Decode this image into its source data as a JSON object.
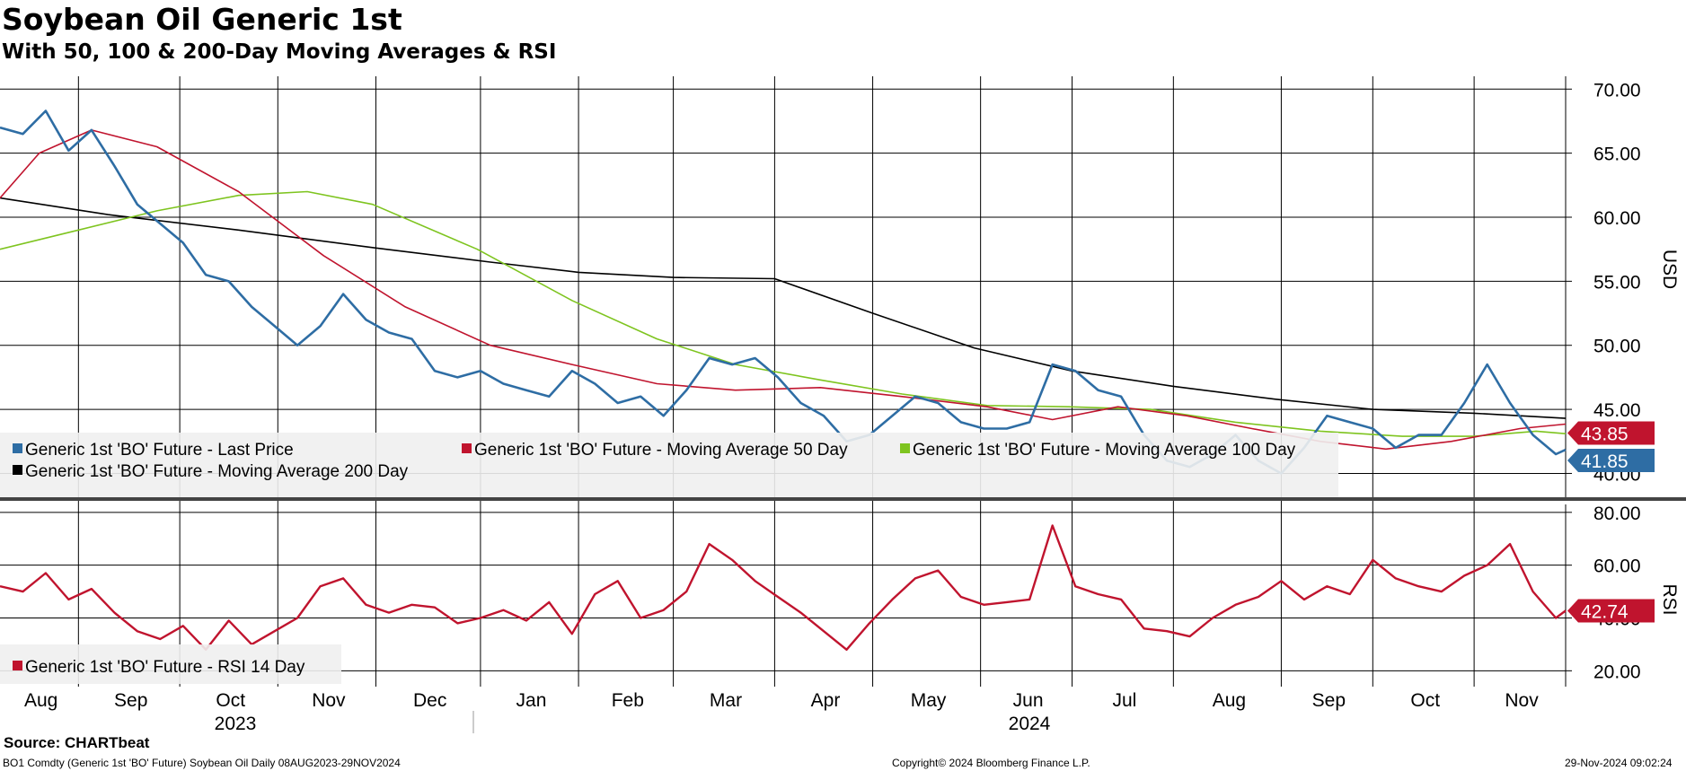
{
  "header": {
    "title": "Soybean Oil Generic 1st",
    "subtitle": "With 50, 100 & 200-Day Moving Averages & RSI"
  },
  "footer": {
    "source": "Source: CHARTbeat",
    "security": "BO1 Comdty (Generic 1st 'BO' Future) Soybean Oil  Daily 08AUG2023-29NOV2024",
    "copyright": "Copyright© 2024 Bloomberg Finance L.P.",
    "timestamp": "29-Nov-2024 09:02:24"
  },
  "colors": {
    "last_price": "#2e6da4",
    "ma50": "#c0142e",
    "ma100": "#7ec41f",
    "ma200": "#000000",
    "rsi": "#c0142e",
    "legend_bg": "#efefef",
    "grid": "#000000"
  },
  "chart_data": [
    {
      "type": "line",
      "panel": "price",
      "ylabel": "USD",
      "ylim": [
        38,
        71
      ],
      "yticks": [
        "70.00",
        "65.00",
        "60.00",
        "55.00",
        "50.00",
        "45.00",
        "40.00"
      ],
      "ytick_values": [
        70,
        65,
        60,
        55,
        50,
        45,
        40
      ],
      "x_months": [
        "Aug",
        "Sep",
        "Oct",
        "Nov",
        "Dec",
        "Jan",
        "Feb",
        "Mar",
        "Apr",
        "May",
        "Jun",
        "Jul",
        "Aug",
        "Sep",
        "Oct",
        "Nov"
      ],
      "x_years": [
        "2023",
        "2024"
      ],
      "x_range": [
        "2023-08-08",
        "2024-11-29"
      ],
      "last_value_tags": [
        {
          "label": "43.85",
          "series": "ma50",
          "value": 43.85
        },
        {
          "label": "41.85",
          "series": "last_price",
          "value": 41.85
        }
      ],
      "legend": [
        "Generic 1st 'BO' Future - Last Price",
        "Generic 1st 'BO' Future - Moving Average 50 Day",
        "Generic 1st 'BO' Future - Moving Average 100 Day",
        "Generic 1st 'BO' Future - Moving Average 200 Day"
      ],
      "series": [
        {
          "name": "Generic 1st 'BO' Future - Last Price",
          "key": "last_price",
          "x": [
            "2023-08-08",
            "2023-08-15",
            "2023-08-22",
            "2023-08-29",
            "2023-09-05",
            "2023-09-12",
            "2023-09-19",
            "2023-09-26",
            "2023-10-03",
            "2023-10-10",
            "2023-10-17",
            "2023-10-24",
            "2023-10-31",
            "2023-11-07",
            "2023-11-14",
            "2023-11-21",
            "2023-11-28",
            "2023-12-05",
            "2023-12-12",
            "2023-12-19",
            "2023-12-26",
            "2024-01-02",
            "2024-01-09",
            "2024-01-16",
            "2024-01-23",
            "2024-01-30",
            "2024-02-06",
            "2024-02-13",
            "2024-02-20",
            "2024-02-27",
            "2024-03-05",
            "2024-03-12",
            "2024-03-19",
            "2024-03-26",
            "2024-04-02",
            "2024-04-09",
            "2024-04-16",
            "2024-04-23",
            "2024-04-30",
            "2024-05-07",
            "2024-05-14",
            "2024-05-21",
            "2024-05-28",
            "2024-06-04",
            "2024-06-11",
            "2024-06-18",
            "2024-06-25",
            "2024-07-02",
            "2024-07-09",
            "2024-07-16",
            "2024-07-23",
            "2024-07-30",
            "2024-08-06",
            "2024-08-13",
            "2024-08-20",
            "2024-08-27",
            "2024-09-03",
            "2024-09-10",
            "2024-09-17",
            "2024-09-24",
            "2024-10-01",
            "2024-10-08",
            "2024-10-15",
            "2024-10-22",
            "2024-10-29",
            "2024-11-05",
            "2024-11-12",
            "2024-11-19",
            "2024-11-26",
            "2024-11-29"
          ],
          "values": [
            67.0,
            66.5,
            68.3,
            65.2,
            66.8,
            64.0,
            61.0,
            59.5,
            58.0,
            55.5,
            55.0,
            53.0,
            51.5,
            50.0,
            51.5,
            54.0,
            52.0,
            51.0,
            50.5,
            48.0,
            47.5,
            48.0,
            47.0,
            46.5,
            46.0,
            48.0,
            47.0,
            45.5,
            46.0,
            44.5,
            46.5,
            49.0,
            48.5,
            49.0,
            47.5,
            45.5,
            44.5,
            42.5,
            43.0,
            44.5,
            46.0,
            45.5,
            44.0,
            43.5,
            43.5,
            44.0,
            48.5,
            48.0,
            46.5,
            46.0,
            43.0,
            41.0,
            40.5,
            41.5,
            43.0,
            41.0,
            40.0,
            42.0,
            44.5,
            44.0,
            43.5,
            42.0,
            43.0,
            43.0,
            45.5,
            48.5,
            45.5,
            43.0,
            41.5,
            41.85
          ]
        },
        {
          "name": "Generic 1st 'BO' Future - Moving Average 50 Day",
          "key": "ma50",
          "x": [
            "2023-08-08",
            "2023-08-20",
            "2023-09-05",
            "2023-09-25",
            "2023-10-20",
            "2023-11-15",
            "2023-12-10",
            "2024-01-05",
            "2024-01-30",
            "2024-02-25",
            "2024-03-20",
            "2024-04-15",
            "2024-05-10",
            "2024-06-05",
            "2024-06-25",
            "2024-07-15",
            "2024-08-05",
            "2024-08-25",
            "2024-09-15",
            "2024-10-05",
            "2024-10-25",
            "2024-11-15",
            "2024-11-29"
          ],
          "values": [
            61.5,
            65.0,
            66.8,
            65.5,
            62.0,
            57.0,
            53.0,
            50.0,
            48.5,
            47.0,
            46.5,
            46.7,
            46.0,
            45.2,
            44.2,
            45.2,
            44.5,
            43.5,
            42.5,
            41.9,
            42.5,
            43.5,
            43.85
          ]
        },
        {
          "name": "Generic 1st 'BO' Future - Moving Average 100 Day",
          "key": "ma100",
          "x": [
            "2023-08-08",
            "2023-09-01",
            "2023-09-25",
            "2023-10-20",
            "2023-11-10",
            "2023-11-30",
            "2024-01-01",
            "2024-01-30",
            "2024-02-25",
            "2024-03-20",
            "2024-04-15",
            "2024-05-10",
            "2024-06-05",
            "2024-06-30",
            "2024-07-25",
            "2024-08-20",
            "2024-09-15",
            "2024-10-10",
            "2024-11-01",
            "2024-11-20",
            "2024-11-29"
          ],
          "values": [
            57.5,
            59.0,
            60.5,
            61.7,
            62.0,
            61.0,
            57.5,
            53.5,
            50.5,
            48.5,
            47.3,
            46.2,
            45.3,
            45.2,
            45.0,
            44.0,
            43.3,
            42.9,
            42.9,
            43.3,
            43.1
          ]
        },
        {
          "name": "Generic 1st 'BO' Future - Moving Average 200 Day",
          "key": "ma200",
          "x": [
            "2023-08-08",
            "2023-09-10",
            "2023-10-20",
            "2023-12-01",
            "2024-01-05",
            "2024-02-01",
            "2024-03-01",
            "2024-04-01",
            "2024-05-01",
            "2024-06-01",
            "2024-07-01",
            "2024-08-01",
            "2024-09-01",
            "2024-10-01",
            "2024-11-01",
            "2024-11-29"
          ],
          "values": [
            61.5,
            60.2,
            59.0,
            57.6,
            56.5,
            55.7,
            55.3,
            55.2,
            52.5,
            49.8,
            48.0,
            46.8,
            45.8,
            45.0,
            44.7,
            44.3
          ]
        }
      ]
    },
    {
      "type": "line",
      "panel": "rsi",
      "ylabel": "RSI",
      "ylim": [
        14,
        83
      ],
      "yticks": [
        "80.00",
        "60.00",
        "40.00",
        "20.00"
      ],
      "ytick_values": [
        80,
        60,
        40,
        20
      ],
      "last_value_tags": [
        {
          "label": "42.74",
          "series": "rsi",
          "value": 42.74
        }
      ],
      "legend": [
        "Generic 1st 'BO' Future - RSI 14 Day"
      ],
      "series": [
        {
          "name": "Generic 1st 'BO' Future - RSI 14 Day",
          "key": "rsi",
          "x": [
            "2023-08-08",
            "2023-08-15",
            "2023-08-22",
            "2023-08-29",
            "2023-09-05",
            "2023-09-12",
            "2023-09-19",
            "2023-09-26",
            "2023-10-03",
            "2023-10-10",
            "2023-10-17",
            "2023-10-24",
            "2023-10-31",
            "2023-11-07",
            "2023-11-14",
            "2023-11-21",
            "2023-11-28",
            "2023-12-05",
            "2023-12-12",
            "2023-12-19",
            "2023-12-26",
            "2024-01-02",
            "2024-01-09",
            "2024-01-16",
            "2024-01-23",
            "2024-01-30",
            "2024-02-06",
            "2024-02-13",
            "2024-02-20",
            "2024-02-27",
            "2024-03-05",
            "2024-03-12",
            "2024-03-19",
            "2024-03-26",
            "2024-04-02",
            "2024-04-09",
            "2024-04-16",
            "2024-04-23",
            "2024-04-30",
            "2024-05-07",
            "2024-05-14",
            "2024-05-21",
            "2024-05-28",
            "2024-06-04",
            "2024-06-11",
            "2024-06-18",
            "2024-06-25",
            "2024-07-02",
            "2024-07-09",
            "2024-07-16",
            "2024-07-23",
            "2024-07-30",
            "2024-08-06",
            "2024-08-13",
            "2024-08-20",
            "2024-08-27",
            "2024-09-03",
            "2024-09-10",
            "2024-09-17",
            "2024-09-24",
            "2024-10-01",
            "2024-10-08",
            "2024-10-15",
            "2024-10-22",
            "2024-10-29",
            "2024-11-05",
            "2024-11-12",
            "2024-11-19",
            "2024-11-26",
            "2024-11-29"
          ],
          "values": [
            52,
            50,
            57,
            47,
            51,
            42,
            35,
            32,
            37,
            28,
            39,
            30,
            35,
            40,
            52,
            55,
            45,
            42,
            45,
            44,
            38,
            40,
            43,
            39,
            46,
            34,
            49,
            54,
            40,
            43,
            50,
            68,
            62,
            54,
            48,
            42,
            35,
            28,
            38,
            47,
            55,
            58,
            48,
            45,
            46,
            47,
            75,
            52,
            49,
            47,
            36,
            35,
            33,
            40,
            45,
            48,
            54,
            47,
            52,
            49,
            62,
            55,
            52,
            50,
            56,
            60,
            68,
            50,
            40,
            42.74
          ]
        }
      ]
    }
  ]
}
